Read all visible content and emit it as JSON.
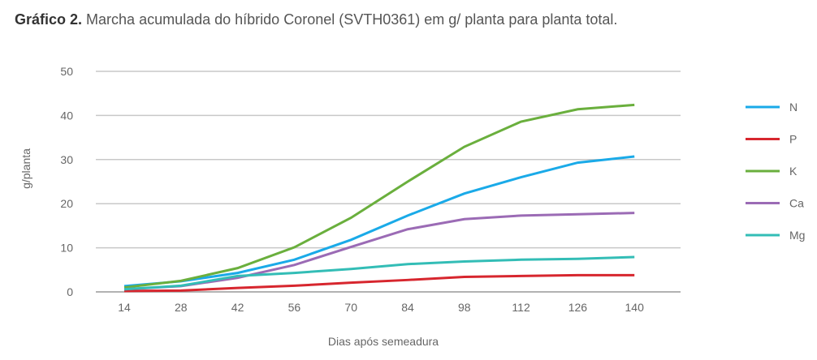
{
  "chart_data": {
    "type": "line",
    "title_bold": "Gráfico 2.",
    "title": "Marcha acumulada do híbrido Coronel (SVTH0361) em g/ planta para planta total.",
    "xlabel": "Dias após semeadura",
    "ylabel": "g/planta",
    "ylim": [
      0,
      50
    ],
    "yticks": [
      0,
      10,
      20,
      30,
      40,
      50
    ],
    "x": [
      14,
      28,
      42,
      56,
      70,
      84,
      98,
      112,
      126,
      140
    ],
    "grid": true,
    "legend": "right",
    "series": [
      {
        "name": "N",
        "color": "#1aaae8",
        "values": [
          1.3,
          2.4,
          4.3,
          7.3,
          11.8,
          17.3,
          22.3,
          26.0,
          29.3,
          30.7
        ]
      },
      {
        "name": "P",
        "color": "#d7262e",
        "values": [
          0.2,
          0.3,
          0.9,
          1.4,
          2.1,
          2.7,
          3.4,
          3.6,
          3.8,
          3.8
        ]
      },
      {
        "name": "K",
        "color": "#6aaf3d",
        "values": [
          1.0,
          2.5,
          5.4,
          10.1,
          16.8,
          25.0,
          32.9,
          38.6,
          41.4,
          42.4
        ]
      },
      {
        "name": "Ca",
        "color": "#9b6bb5",
        "values": [
          0.6,
          1.3,
          3.2,
          6.1,
          10.2,
          14.2,
          16.5,
          17.3,
          17.6,
          17.9
        ]
      },
      {
        "name": "Mg",
        "color": "#33bdb6",
        "values": [
          0.6,
          1.4,
          3.6,
          4.3,
          5.2,
          6.3,
          6.9,
          7.3,
          7.5,
          7.9
        ]
      }
    ]
  }
}
